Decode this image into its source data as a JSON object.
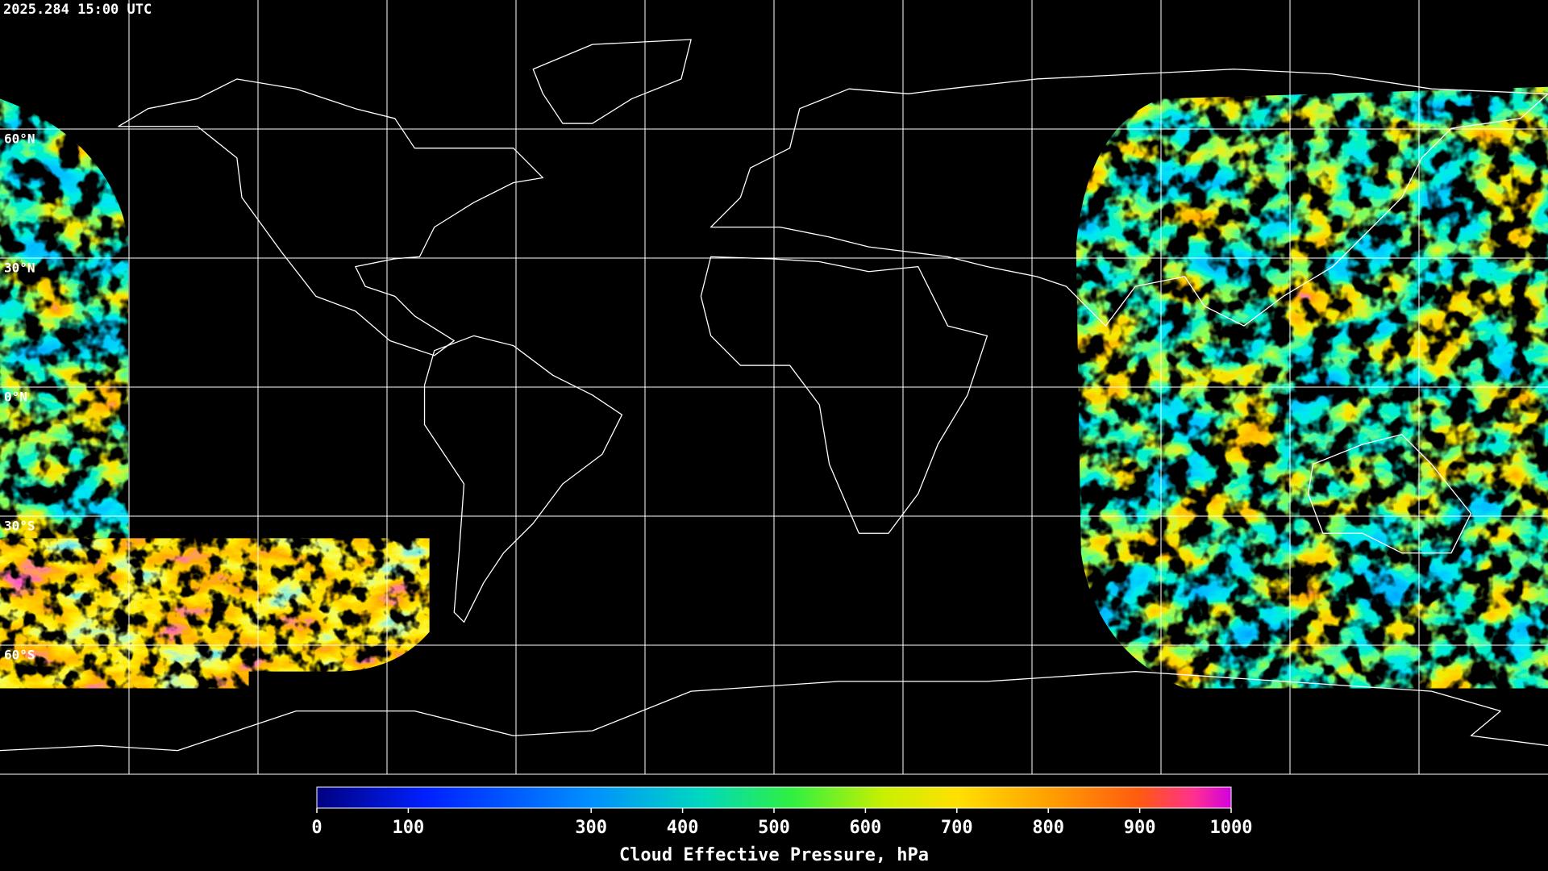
{
  "header": {
    "timestamp": "2025.284 15:00 UTC"
  },
  "map": {
    "lon_range": [
      -180,
      180
    ],
    "lat_range": [
      -90,
      90
    ],
    "lon_lines": [
      -150,
      -120,
      -90,
      -60,
      -30,
      0,
      30,
      60,
      90,
      120,
      150
    ],
    "lat_lines": [
      {
        "value": 60,
        "label": "60°N"
      },
      {
        "value": 30,
        "label": "30°N"
      },
      {
        "value": 0,
        "label": "0°N"
      },
      {
        "value": -30,
        "label": "30°S"
      },
      {
        "value": -60,
        "label": "60°S"
      }
    ]
  },
  "colorbar": {
    "label": "Cloud Effective Pressure, hPa",
    "range": [
      0,
      1000
    ],
    "ticks": [
      0,
      100,
      300,
      400,
      500,
      600,
      700,
      800,
      900,
      1000
    ]
  }
}
